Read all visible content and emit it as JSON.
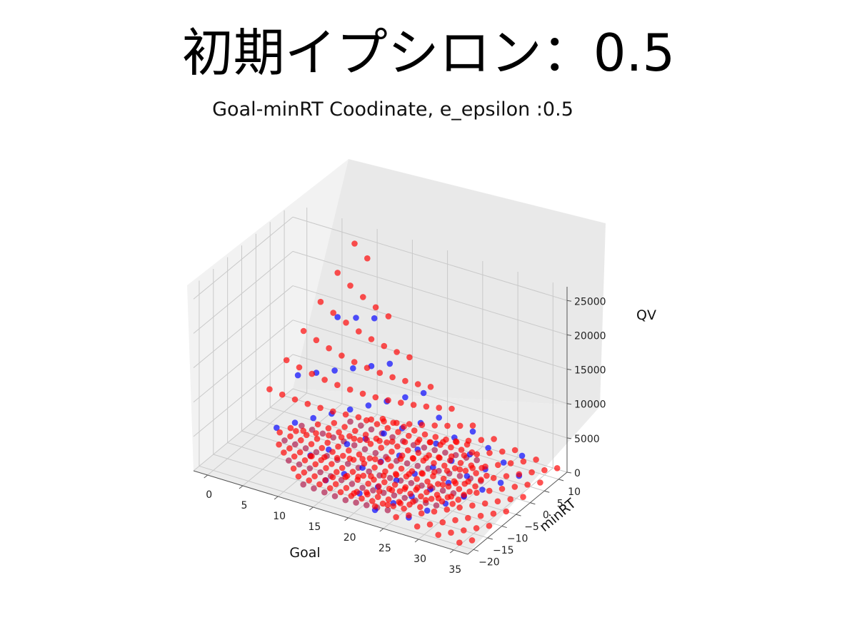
{
  "slide": {
    "title": "初期イプシロン：0.5"
  },
  "chart_data": {
    "type": "scatter3d",
    "title": "Goal-minRT Coodinate, e_epsilon :0.5",
    "xlabel": "Goal",
    "ylabel": "minRT",
    "zlabel": "QV",
    "xlim": [
      -2,
      37
    ],
    "ylim": [
      -22,
      13
    ],
    "zlim": [
      0,
      27000
    ],
    "xticks": [
      "0",
      "5",
      "10",
      "15",
      "20",
      "25",
      "30",
      "35"
    ],
    "yticks": [
      "−20",
      "−15",
      "−10",
      "−5",
      "0",
      "5",
      "10"
    ],
    "zticks": [
      "0",
      "5000",
      "10000",
      "15000",
      "20000",
      "25000"
    ],
    "grid": true,
    "series": [
      {
        "color": "#ff0000",
        "points": []
      },
      {
        "color": "#0000ff",
        "points": []
      },
      {
        "color": "#b0184a",
        "points": []
      }
    ]
  }
}
